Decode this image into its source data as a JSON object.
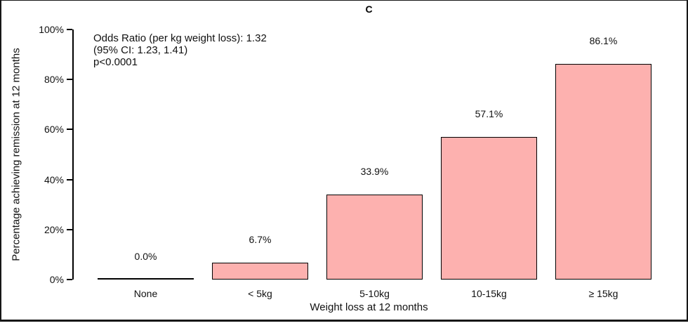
{
  "chart_data": {
    "type": "bar",
    "title": "C",
    "categories": [
      "None",
      "< 5kg",
      "5-10kg",
      "10-15kg",
      "≥ 15kg"
    ],
    "values": [
      0.0,
      6.7,
      33.9,
      57.1,
      86.1
    ],
    "value_labels": [
      "0.0%",
      "6.7%",
      "33.9%",
      "57.1%",
      "86.1%"
    ],
    "xlabel": "Weight loss at 12 months",
    "ylabel": "Percentage achieving remission at 12 months",
    "ylim": [
      0,
      100
    ],
    "yticks": [
      0,
      20,
      40,
      60,
      80,
      100
    ],
    "ytick_labels": [
      "0%",
      "20%",
      "40%",
      "60%",
      "80%",
      "100%"
    ],
    "grid": false,
    "legend": "none",
    "annotation": [
      "Odds Ratio (per kg weight loss): 1.32",
      "(95% CI: 1.23, 1.41)",
      "p<0.0001"
    ],
    "colors": {
      "bar_fill": "#FDB1AF",
      "bar_border": "#000000",
      "axis": "#000000",
      "text": "#1a1a1a"
    }
  }
}
